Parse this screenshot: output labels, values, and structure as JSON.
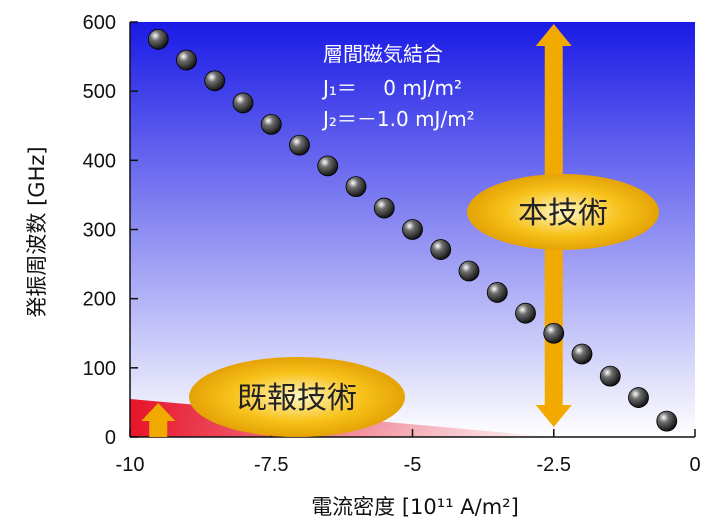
{
  "chart_data": {
    "type": "scatter",
    "xlabel": "電流密度 [10¹¹ A/m²]",
    "ylabel": "発振周波数 [GHz]",
    "xlim": [
      -10,
      0
    ],
    "ylim": [
      0,
      600
    ],
    "x_ticks": [
      "-10",
      "-7.5",
      "-5",
      "-2.5",
      "0"
    ],
    "x_tick_values": [
      -10,
      -7.5,
      -5,
      -2.5,
      0
    ],
    "y_ticks": [
      "0",
      "100",
      "200",
      "300",
      "400",
      "500",
      "600"
    ],
    "y_tick_values": [
      0,
      100,
      200,
      300,
      400,
      500,
      600
    ],
    "grid": false,
    "x": [
      -9.5,
      -9.0,
      -8.5,
      -8.0,
      -7.5,
      -7.0,
      -6.5,
      -6.0,
      -5.5,
      -5.0,
      -4.5,
      -4.0,
      -3.5,
      -3.0,
      -2.5,
      -2.0,
      -1.5,
      -1.0,
      -0.5
    ],
    "y": [
      575,
      545,
      515,
      483,
      452,
      422,
      392,
      362,
      331,
      300,
      271,
      240,
      209,
      179,
      150,
      120,
      88,
      57,
      23
    ],
    "annotation": {
      "line1": "層間磁気結合",
      "line2": "J₁＝　 0 mJ/m²",
      "line3": "J₂＝－1.0 mJ/m²"
    },
    "labels": {
      "proposed": "本技術",
      "previous": "既報技術"
    },
    "previous_region": {
      "x_from": -10,
      "x_to": -2.5,
      "y_at_start": 55,
      "y_at_end": 0
    },
    "proposed_range": {
      "x": -2.5,
      "y_from": 0,
      "y_to": 600
    },
    "previous_arrow": {
      "x": -9.5,
      "y_from": 0,
      "y_to": 55
    },
    "colors": {
      "background_top": "#1a1ae6",
      "background_bottom": "#ffffff",
      "arrow": "#f2a900",
      "oval": "#f7c21a",
      "region": "#e8142a",
      "marker": "#111111"
    }
  }
}
